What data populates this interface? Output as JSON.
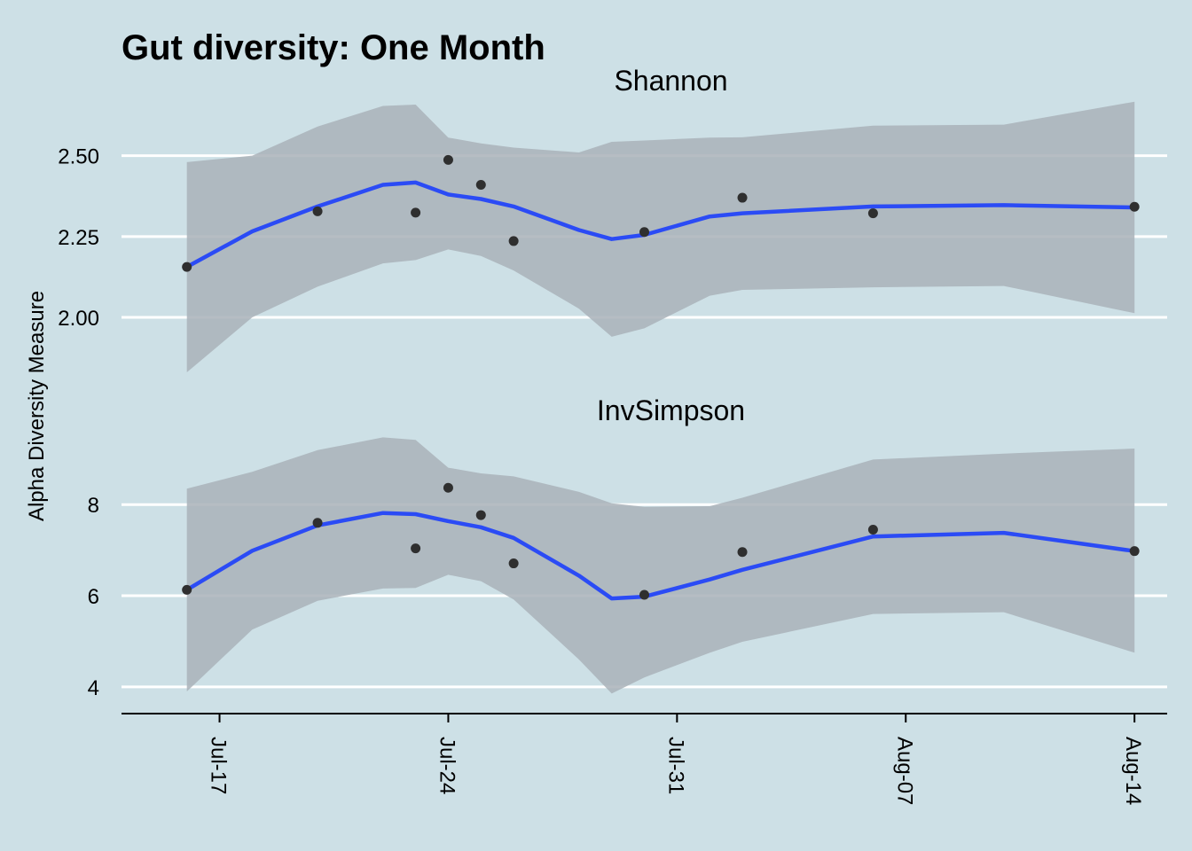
{
  "chart_data": {
    "type": "line",
    "title": "Gut diversity: One Month",
    "ylabel": "Alpha Diversity Measure",
    "xlabel": "",
    "x_ticks": [
      "Jul-17",
      "Jul-24",
      "Jul-31",
      "Aug-07",
      "Aug-14"
    ],
    "x_tick_values": [
      "2017-07-17",
      "2017-07-24",
      "2017-07-31",
      "2017-08-07",
      "2017-08-14"
    ],
    "xlim": [
      "2017-07-14",
      "2017-08-15"
    ],
    "grid": "horizontal major",
    "colors": {
      "background": "#cde0e6",
      "smooth": "#2b4bf5",
      "ribbon": "#a9b2b8",
      "points": "#2f2f2f",
      "grid": "#ffffff"
    },
    "panels": [
      {
        "strip": "Shannon",
        "ylim": [
          1.83,
          2.68
        ],
        "y_ticks": [
          2.0,
          2.25,
          2.5
        ],
        "y_tick_labels": [
          "2.00",
          "2.25",
          "2.50"
        ],
        "points": [
          {
            "x": "2017-07-16",
            "y": 2.156
          },
          {
            "x": "2017-07-20",
            "y": 2.328
          },
          {
            "x": "2017-07-23",
            "y": 2.324
          },
          {
            "x": "2017-07-24",
            "y": 2.487
          },
          {
            "x": "2017-07-25",
            "y": 2.41
          },
          {
            "x": "2017-07-26",
            "y": 2.236
          },
          {
            "x": "2017-07-30",
            "y": 2.264
          },
          {
            "x": "2017-08-02",
            "y": 2.37
          },
          {
            "x": "2017-08-06",
            "y": 2.322
          },
          {
            "x": "2017-08-14",
            "y": 2.342
          }
        ],
        "smooth": [
          {
            "x": "2017-07-16",
            "y": 2.156,
            "lo": 1.83,
            "hi": 2.48
          },
          {
            "x": "2017-07-18",
            "y": 2.266,
            "lo": 2.0,
            "hi": 2.5
          },
          {
            "x": "2017-07-20",
            "y": 2.343,
            "lo": 2.095,
            "hi": 2.59
          },
          {
            "x": "2017-07-22",
            "y": 2.41,
            "lo": 2.167,
            "hi": 2.654
          },
          {
            "x": "2017-07-23",
            "y": 2.417,
            "lo": 2.177,
            "hi": 2.658
          },
          {
            "x": "2017-07-24",
            "y": 2.38,
            "lo": 2.21,
            "hi": 2.556
          },
          {
            "x": "2017-07-25",
            "y": 2.366,
            "lo": 2.19,
            "hi": 2.538
          },
          {
            "x": "2017-07-26",
            "y": 2.343,
            "lo": 2.145,
            "hi": 2.525
          },
          {
            "x": "2017-07-28",
            "y": 2.27,
            "lo": 2.027,
            "hi": 2.51
          },
          {
            "x": "2017-07-29",
            "y": 2.242,
            "lo": 1.94,
            "hi": 2.543
          },
          {
            "x": "2017-07-30",
            "y": 2.255,
            "lo": 1.966,
            "hi": 2.547
          },
          {
            "x": "2017-08-01",
            "y": 2.312,
            "lo": 2.067,
            "hi": 2.556
          },
          {
            "x": "2017-08-02",
            "y": 2.322,
            "lo": 2.085,
            "hi": 2.557
          },
          {
            "x": "2017-08-06",
            "y": 2.343,
            "lo": 2.093,
            "hi": 2.593
          },
          {
            "x": "2017-08-10",
            "y": 2.347,
            "lo": 2.097,
            "hi": 2.596
          },
          {
            "x": "2017-08-14",
            "y": 2.34,
            "lo": 2.013,
            "hi": 2.667
          }
        ]
      },
      {
        "strip": "InvSimpson",
        "ylim": [
          3.55,
          9.6
        ],
        "y_ticks": [
          4,
          6,
          8
        ],
        "y_tick_labels": [
          "4",
          "6",
          "8"
        ],
        "points": [
          {
            "x": "2017-07-16",
            "y": 6.13
          },
          {
            "x": "2017-07-20",
            "y": 7.6
          },
          {
            "x": "2017-07-23",
            "y": 7.04
          },
          {
            "x": "2017-07-24",
            "y": 8.37
          },
          {
            "x": "2017-07-25",
            "y": 7.77
          },
          {
            "x": "2017-07-26",
            "y": 6.71
          },
          {
            "x": "2017-07-30",
            "y": 6.02
          },
          {
            "x": "2017-08-02",
            "y": 6.96
          },
          {
            "x": "2017-08-06",
            "y": 7.45
          },
          {
            "x": "2017-08-14",
            "y": 6.98
          }
        ],
        "smooth": [
          {
            "x": "2017-07-16",
            "y": 6.13,
            "lo": 3.9,
            "hi": 8.35
          },
          {
            "x": "2017-07-18",
            "y": 6.988,
            "lo": 5.258,
            "hi": 8.72
          },
          {
            "x": "2017-07-20",
            "y": 7.543,
            "lo": 5.89,
            "hi": 9.196
          },
          {
            "x": "2017-07-22",
            "y": 7.817,
            "lo": 6.158,
            "hi": 9.475
          },
          {
            "x": "2017-07-23",
            "y": 7.79,
            "lo": 6.17,
            "hi": 9.42
          },
          {
            "x": "2017-07-24",
            "y": 7.638,
            "lo": 6.46,
            "hi": 8.81
          },
          {
            "x": "2017-07-25",
            "y": 7.502,
            "lo": 6.32,
            "hi": 8.686
          },
          {
            "x": "2017-07-26",
            "y": 7.27,
            "lo": 5.92,
            "hi": 8.62
          },
          {
            "x": "2017-07-28",
            "y": 6.44,
            "lo": 4.6,
            "hi": 8.28
          },
          {
            "x": "2017-07-29",
            "y": 5.94,
            "lo": 3.853,
            "hi": 8.028
          },
          {
            "x": "2017-07-30",
            "y": 5.98,
            "lo": 4.207,
            "hi": 7.95
          },
          {
            "x": "2017-08-01",
            "y": 6.357,
            "lo": 4.748,
            "hi": 7.966
          },
          {
            "x": "2017-08-02",
            "y": 6.57,
            "lo": 4.99,
            "hi": 8.15
          },
          {
            "x": "2017-08-06",
            "y": 7.3,
            "lo": 5.6,
            "hi": 8.99
          },
          {
            "x": "2017-08-10",
            "y": 7.38,
            "lo": 5.64,
            "hi": 9.12
          },
          {
            "x": "2017-08-14",
            "y": 6.98,
            "lo": 4.75,
            "hi": 9.23
          }
        ]
      }
    ]
  }
}
